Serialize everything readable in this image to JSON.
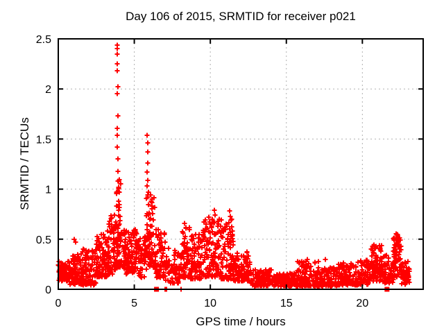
{
  "chart_data": {
    "type": "scatter",
    "title": "Day 106 of 2015, SRMTID for receiver p021",
    "xlabel": "GPS time / hours",
    "ylabel": "SRMTID / TECUs",
    "xlim": [
      0,
      24
    ],
    "ylim": [
      0,
      2.5
    ],
    "xticks": [
      {
        "v": 0,
        "label": "0"
      },
      {
        "v": 5,
        "label": "5"
      },
      {
        "v": 10,
        "label": "10"
      },
      {
        "v": 15,
        "label": "15"
      },
      {
        "v": 20,
        "label": "20"
      }
    ],
    "yticks": [
      {
        "v": 0,
        "label": "0"
      },
      {
        "v": 0.5,
        "label": "0.5"
      },
      {
        "v": 1,
        "label": "1"
      },
      {
        "v": 1.5,
        "label": "1.5"
      },
      {
        "v": 2,
        "label": "2"
      },
      {
        "v": 2.5,
        "label": "2.5"
      }
    ],
    "grid": true,
    "legend": "none",
    "marker": {
      "shape": "plus",
      "color": "#ff0000",
      "size": 7,
      "stroke": 2
    },
    "grid_color": "#b0b0b0",
    "border_color": "#000000",
    "generation_seed": 106,
    "feature_points": [
      [
        3.88,
        2.44
      ],
      [
        3.89,
        2.4
      ],
      [
        3.87,
        2.35
      ],
      [
        3.9,
        2.25
      ],
      [
        3.88,
        2.18
      ],
      [
        3.91,
        2.02
      ],
      [
        3.89,
        1.95
      ],
      [
        3.92,
        1.73
      ],
      [
        3.88,
        1.61
      ],
      [
        3.9,
        1.54
      ],
      [
        3.86,
        1.42
      ],
      [
        3.93,
        1.3
      ],
      [
        3.91,
        1.18
      ],
      [
        3.95,
        1.08
      ],
      [
        3.85,
        0.97
      ],
      [
        3.97,
        0.88
      ],
      [
        5.86,
        1.54
      ],
      [
        5.88,
        1.46
      ],
      [
        5.87,
        1.37
      ],
      [
        5.89,
        1.26
      ],
      [
        5.85,
        1.17
      ],
      [
        5.9,
        1.09
      ],
      [
        5.86,
        1.03
      ],
      [
        5.91,
        0.97
      ],
      [
        5.88,
        0.92
      ],
      [
        6.05,
        0.94
      ],
      [
        6.1,
        0.88
      ],
      [
        6.16,
        0.83
      ],
      [
        1.05,
        0.5
      ],
      [
        1.12,
        0.47
      ],
      [
        2.85,
        0.55
      ],
      [
        3.25,
        0.58
      ],
      [
        8.32,
        0.66
      ],
      [
        8.38,
        0.61
      ],
      [
        9.02,
        0.55
      ],
      [
        9.58,
        0.67
      ],
      [
        9.9,
        0.72
      ],
      [
        10.15,
        0.7
      ],
      [
        10.28,
        0.79
      ],
      [
        10.32,
        0.74
      ],
      [
        10.55,
        0.65
      ],
      [
        11.25,
        0.78
      ],
      [
        11.3,
        0.73
      ],
      [
        11.42,
        0.62
      ],
      [
        16.38,
        0.3
      ],
      [
        17.12,
        0.28
      ],
      [
        17.55,
        0.3
      ],
      [
        18.75,
        0.26
      ],
      [
        20.78,
        0.44
      ],
      [
        20.85,
        0.41
      ],
      [
        22.28,
        0.55
      ],
      [
        22.31,
        0.53
      ],
      [
        22.24,
        0.5
      ],
      [
        22.35,
        0.47
      ],
      [
        22.45,
        0.42
      ]
    ],
    "zero_square_points": [
      6.46,
      21.62
    ],
    "zero_plus_points": [
      6.52,
      7.04,
      7.13,
      8.06
    ],
    "cloud_bands": {
      "format": [
        "x_start",
        "x_end",
        "count",
        "y_min",
        "y_max",
        "low_bias"
      ],
      "rows": [
        [
          0.0,
          0.7,
          70,
          0.08,
          0.28,
          1.3
        ],
        [
          0.7,
          1.6,
          90,
          0.05,
          0.38,
          1.6
        ],
        [
          1.6,
          2.5,
          95,
          0.04,
          0.4,
          1.5
        ],
        [
          2.5,
          3.3,
          95,
          0.12,
          0.55,
          1.3
        ],
        [
          3.3,
          3.75,
          60,
          0.15,
          0.75,
          1.5
        ],
        [
          3.75,
          4.1,
          70,
          0.22,
          1.1,
          1.8
        ],
        [
          4.1,
          5.3,
          130,
          0.15,
          0.6,
          1.1
        ],
        [
          5.3,
          5.8,
          45,
          0.12,
          0.55,
          1.4
        ],
        [
          5.8,
          6.35,
          80,
          0.22,
          0.95,
          1.5
        ],
        [
          6.35,
          7.05,
          70,
          0.12,
          0.6,
          1.4
        ],
        [
          7.05,
          8.15,
          70,
          0.06,
          0.42,
          1.6
        ],
        [
          8.15,
          8.7,
          55,
          0.12,
          0.62,
          1.5
        ],
        [
          8.7,
          9.5,
          75,
          0.1,
          0.55,
          1.5
        ],
        [
          9.5,
          10.7,
          120,
          0.12,
          0.7,
          1.5
        ],
        [
          10.7,
          11.55,
          90,
          0.1,
          0.7,
          1.7
        ],
        [
          11.55,
          12.6,
          85,
          0.08,
          0.38,
          1.4
        ],
        [
          12.6,
          14.2,
          120,
          0.03,
          0.2,
          1.3
        ],
        [
          14.2,
          15.6,
          115,
          0.03,
          0.16,
          1.2
        ],
        [
          15.6,
          16.9,
          105,
          0.03,
          0.28,
          1.6
        ],
        [
          16.9,
          18.3,
          115,
          0.03,
          0.22,
          1.5
        ],
        [
          18.3,
          19.7,
          105,
          0.04,
          0.26,
          1.5
        ],
        [
          19.7,
          20.5,
          70,
          0.05,
          0.3,
          1.4
        ],
        [
          20.5,
          21.3,
          75,
          0.08,
          0.44,
          1.3
        ],
        [
          21.3,
          22.05,
          60,
          0.06,
          0.34,
          1.4
        ],
        [
          22.05,
          22.55,
          65,
          0.12,
          0.56,
          1.1
        ],
        [
          22.55,
          23.1,
          45,
          0.05,
          0.28,
          1.3
        ]
      ]
    }
  }
}
